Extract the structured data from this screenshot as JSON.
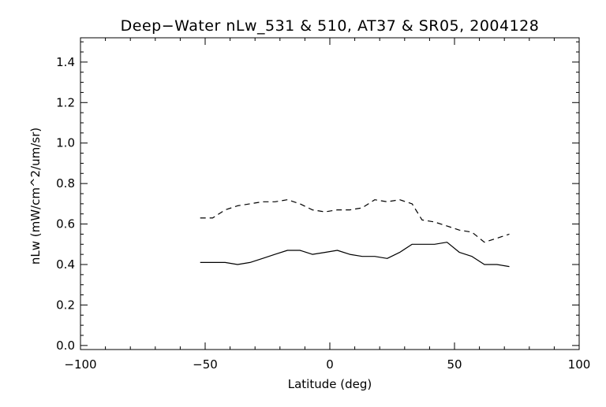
{
  "chart_data": {
    "type": "line",
    "title": "Deep−Water nLw_531 & 510, AT37 & SR05, 2004128",
    "xlabel": "Latitude (deg)",
    "ylabel": "nLw (mW/cm^2/um/sr)",
    "xlim": [
      -100,
      100
    ],
    "ylim": [
      -0.02,
      1.52
    ],
    "x_ticks": [
      -100,
      -50,
      0,
      50,
      100
    ],
    "x_tick_labels": [
      "−100",
      "−50",
      "0",
      "50",
      "100"
    ],
    "y_ticks": [
      0.0,
      0.2,
      0.4,
      0.6,
      0.8,
      1.0,
      1.2,
      1.4
    ],
    "y_tick_labels": [
      "0.0",
      "0.2",
      "0.4",
      "0.6",
      "0.8",
      "1.0",
      "1.2",
      "1.4"
    ],
    "grid": false,
    "legend": "none",
    "series": [
      {
        "style": "dashed",
        "color": "#000000",
        "x": [
          -52,
          -47,
          -42,
          -37,
          -32,
          -27,
          -22,
          -17,
          -12,
          -7,
          -2,
          3,
          8,
          13,
          18,
          23,
          28,
          33,
          37,
          42,
          47,
          52,
          57,
          62,
          67,
          72
        ],
        "y": [
          0.63,
          0.63,
          0.67,
          0.69,
          0.7,
          0.71,
          0.71,
          0.72,
          0.7,
          0.67,
          0.66,
          0.67,
          0.67,
          0.68,
          0.72,
          0.71,
          0.72,
          0.7,
          0.62,
          0.61,
          0.59,
          0.57,
          0.56,
          0.51,
          0.53,
          0.55
        ]
      },
      {
        "style": "solid",
        "color": "#000000",
        "x": [
          -52,
          -47,
          -42,
          -37,
          -32,
          -27,
          -22,
          -17,
          -12,
          -7,
          -2,
          3,
          8,
          13,
          18,
          23,
          28,
          33,
          37,
          42,
          47,
          52,
          57,
          62,
          67,
          72
        ],
        "y": [
          0.41,
          0.41,
          0.41,
          0.4,
          0.41,
          0.43,
          0.45,
          0.47,
          0.47,
          0.45,
          0.46,
          0.47,
          0.45,
          0.44,
          0.44,
          0.43,
          0.46,
          0.5,
          0.5,
          0.5,
          0.51,
          0.46,
          0.44,
          0.4,
          0.4,
          0.39
        ]
      }
    ]
  }
}
